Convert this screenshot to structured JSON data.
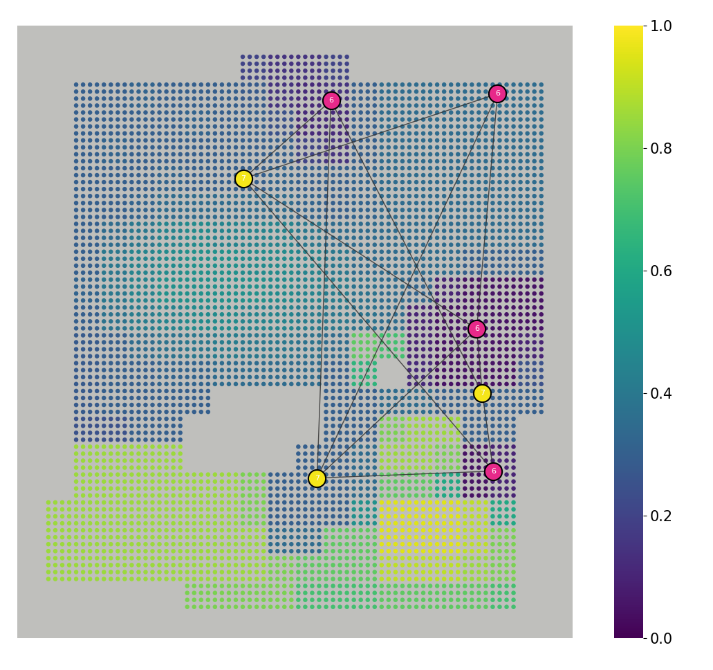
{
  "chart_data": {
    "type": "scatter",
    "tick_labels": false,
    "xlim": [
      0,
      40
    ],
    "ylim": [
      44,
      0
    ],
    "x": [
      1,
      3,
      5,
      7,
      9,
      11,
      13,
      15,
      17,
      19,
      21,
      23,
      25,
      27,
      29,
      31,
      33,
      35,
      37,
      39
    ],
    "y": [
      1,
      3,
      5,
      7,
      9,
      11,
      13,
      15,
      17,
      19,
      21,
      23,
      25,
      27,
      29,
      31,
      33,
      35,
      37,
      39,
      41,
      43
    ],
    "cells": [
      [
        null,
        null,
        null,
        null,
        null,
        null,
        null,
        null,
        null,
        null,
        null,
        null,
        null,
        null,
        null,
        null,
        null,
        null,
        null,
        null
      ],
      [
        null,
        null,
        null,
        null,
        null,
        null,
        null,
        null,
        0.2,
        0.15,
        0.15,
        0.2,
        null,
        null,
        null,
        null,
        null,
        null,
        null,
        null
      ],
      [
        null,
        null,
        0.3,
        0.3,
        0.32,
        0.3,
        0.3,
        0.3,
        0.28,
        0.15,
        0.12,
        0.15,
        0.3,
        0.35,
        0.35,
        0.35,
        0.35,
        0.35,
        0.35,
        null
      ],
      [
        null,
        null,
        0.3,
        0.3,
        0.3,
        0.3,
        0.32,
        0.3,
        0.3,
        0.25,
        0.12,
        0.12,
        0.3,
        0.35,
        0.35,
        0.35,
        0.35,
        0.35,
        0.35,
        null
      ],
      [
        null,
        null,
        0.3,
        0.32,
        0.3,
        0.3,
        0.3,
        0.3,
        0.3,
        0.3,
        0.2,
        0.15,
        0.3,
        0.35,
        0.35,
        0.35,
        0.35,
        0.35,
        0.35,
        null
      ],
      [
        null,
        null,
        0.3,
        0.3,
        0.3,
        0.32,
        0.3,
        0.3,
        0.3,
        0.32,
        0.3,
        0.3,
        0.32,
        0.35,
        0.35,
        0.35,
        0.35,
        0.35,
        0.35,
        null
      ],
      [
        null,
        null,
        0.3,
        0.3,
        0.32,
        0.35,
        0.35,
        0.35,
        0.35,
        0.35,
        0.32,
        0.3,
        0.32,
        0.35,
        0.35,
        0.35,
        0.35,
        0.35,
        0.35,
        null
      ],
      [
        null,
        null,
        0.3,
        0.35,
        0.4,
        0.45,
        0.48,
        0.45,
        0.45,
        0.45,
        0.4,
        0.35,
        0.35,
        0.35,
        0.35,
        0.35,
        0.35,
        0.35,
        0.35,
        null
      ],
      [
        null,
        null,
        0.3,
        0.4,
        0.45,
        0.48,
        0.5,
        0.5,
        0.48,
        0.48,
        0.45,
        0.4,
        0.35,
        0.35,
        0.35,
        0.35,
        0.3,
        0.3,
        0.3,
        null
      ],
      [
        null,
        null,
        0.32,
        0.4,
        0.45,
        0.5,
        0.5,
        0.5,
        0.5,
        0.48,
        0.45,
        0.42,
        0.38,
        0.35,
        0.32,
        0.1,
        0.05,
        0.05,
        0.05,
        null
      ],
      [
        null,
        null,
        0.3,
        0.38,
        0.42,
        0.45,
        0.48,
        0.48,
        0.45,
        0.45,
        0.42,
        0.4,
        0.38,
        0.35,
        0.1,
        0.05,
        0.05,
        0.05,
        0.05,
        null
      ],
      [
        null,
        null,
        0.28,
        0.3,
        0.35,
        0.38,
        0.4,
        0.42,
        0.4,
        0.4,
        0.38,
        0.35,
        0.75,
        0.7,
        0.1,
        0.05,
        0.05,
        0.05,
        0.1,
        null
      ],
      [
        null,
        null,
        0.28,
        0.3,
        0.3,
        0.32,
        0.32,
        0.35,
        0.35,
        0.35,
        0.35,
        0.3,
        0.65,
        null,
        0.12,
        0.05,
        0.05,
        0.05,
        0.25,
        null
      ],
      [
        null,
        null,
        0.28,
        0.3,
        0.3,
        0.3,
        0.3,
        null,
        null,
        null,
        null,
        0.3,
        0.3,
        0.35,
        0.35,
        0.3,
        0.3,
        0.3,
        0.3,
        null
      ],
      [
        null,
        null,
        0.25,
        0.25,
        0.3,
        0.3,
        null,
        null,
        null,
        null,
        null,
        0.3,
        0.3,
        0.8,
        0.85,
        0.85,
        0.3,
        0.3,
        null,
        null
      ],
      [
        null,
        null,
        0.85,
        0.85,
        0.85,
        0.85,
        null,
        null,
        null,
        null,
        0.3,
        0.3,
        0.35,
        0.85,
        0.85,
        0.8,
        0.05,
        0.1,
        null,
        null
      ],
      [
        null,
        null,
        0.85,
        0.85,
        0.85,
        0.85,
        0.85,
        0.85,
        0.8,
        0.3,
        0.3,
        0.3,
        0.35,
        0.75,
        0.75,
        0.6,
        0.05,
        0.1,
        null,
        null
      ],
      [
        null,
        0.85,
        0.85,
        0.85,
        0.85,
        0.85,
        0.85,
        0.85,
        0.8,
        0.3,
        0.3,
        0.3,
        0.5,
        0.95,
        0.95,
        0.95,
        0.9,
        0.6,
        null,
        null
      ],
      [
        null,
        0.85,
        0.85,
        0.85,
        0.85,
        0.85,
        0.85,
        0.85,
        0.85,
        0.35,
        0.35,
        0.75,
        0.75,
        0.95,
        0.95,
        0.95,
        0.9,
        0.8,
        null,
        null
      ],
      [
        null,
        0.85,
        0.85,
        0.85,
        0.85,
        0.85,
        0.85,
        0.85,
        0.85,
        0.8,
        0.75,
        0.75,
        0.75,
        0.9,
        0.9,
        0.9,
        0.85,
        0.8,
        null,
        null
      ],
      [
        null,
        null,
        null,
        null,
        null,
        null,
        0.8,
        0.8,
        0.8,
        0.8,
        0.7,
        0.7,
        0.7,
        0.75,
        0.75,
        0.75,
        0.75,
        0.7,
        null,
        null
      ],
      [
        null,
        null,
        null,
        null,
        null,
        null,
        null,
        null,
        null,
        null,
        null,
        null,
        null,
        null,
        null,
        null,
        null,
        null,
        null,
        null
      ]
    ],
    "nodes": [
      {
        "label": "6",
        "x": 22.6,
        "y": 5.4,
        "color": "#e7298a"
      },
      {
        "label": "6",
        "x": 34.6,
        "y": 4.9,
        "color": "#e7298a"
      },
      {
        "label": "7",
        "x": 16.3,
        "y": 11.0,
        "color": "#f5e61a"
      },
      {
        "label": "6",
        "x": 33.1,
        "y": 21.8,
        "color": "#e7298a"
      },
      {
        "label": "7",
        "x": 33.5,
        "y": 26.4,
        "color": "#f5e61a"
      },
      {
        "label": "7",
        "x": 21.6,
        "y": 32.5,
        "color": "#f5e61a"
      },
      {
        "label": "6",
        "x": 34.3,
        "y": 32.0,
        "color": "#e7298a"
      }
    ],
    "edges": [
      [
        2,
        0
      ],
      [
        2,
        1
      ],
      [
        2,
        3
      ],
      [
        2,
        6
      ],
      [
        0,
        5
      ],
      [
        0,
        4
      ],
      [
        1,
        5
      ],
      [
        1,
        3
      ],
      [
        3,
        4
      ],
      [
        3,
        5
      ],
      [
        4,
        6
      ],
      [
        5,
        6
      ]
    ],
    "colorbar": {
      "range": [
        0,
        1
      ],
      "ticks": [
        {
          "value": 0,
          "label": "0.0"
        },
        {
          "value": 0.2,
          "label": "0.2"
        },
        {
          "value": 0.4,
          "label": "0.4"
        },
        {
          "value": 0.6,
          "label": "0.6"
        },
        {
          "value": 0.8,
          "label": "0.8"
        },
        {
          "value": 1,
          "label": "1.0"
        }
      ]
    }
  }
}
